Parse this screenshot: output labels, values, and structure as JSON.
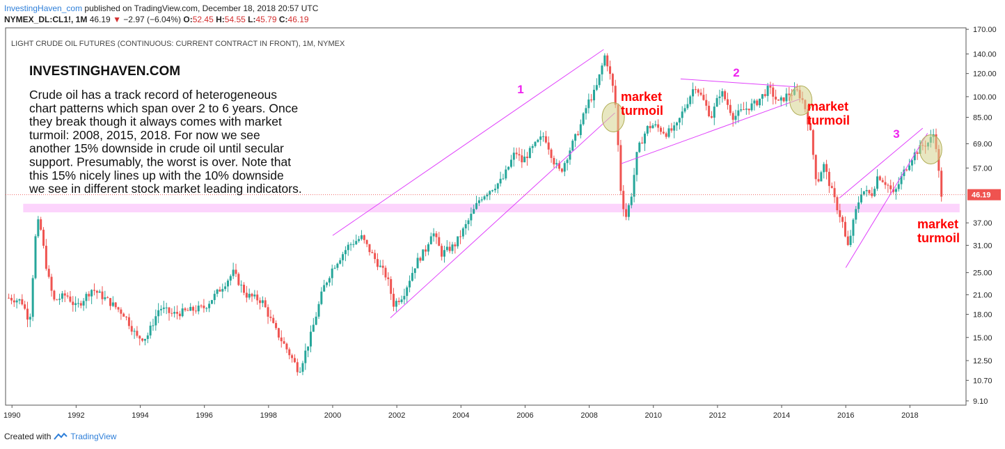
{
  "header": {
    "publisher": "InvestingHaven_com",
    "published_text": "published on TradingView.com, December 18, 2018 20:57 UTC",
    "symbol": "NYMEX_DL:CL1!, 1M",
    "last": "46.19",
    "change_arrow": "▼",
    "change": "−2.97 (−6.04%)",
    "o_label": "O:",
    "o_value": "52.45",
    "h_label": "H:",
    "h_value": "54.55",
    "l_label": "L:",
    "l_value": "45.79",
    "c_label": "C:",
    "c_value": "46.19"
  },
  "footer": {
    "created_with": "Created with",
    "tradingview": "TradingView"
  },
  "colors": {
    "up": "#26a69a",
    "down": "#ef5350",
    "trendline": "#e040fb",
    "zone": "#fbcdfb",
    "turmoil_text": "#ff0000",
    "number_label": "#ee22ee",
    "price_tag": "#ef5350",
    "circle_fill": "#d6d38e"
  },
  "chart_data": {
    "type": "candlestick",
    "title": "LIGHT CRUDE OIL FUTURES (CONTINUOUS: CURRENT CONTRACT IN FRONT), 1M, NYMEX",
    "y_scale": "log",
    "ylim": [
      8.8,
      172
    ],
    "xlim": [
      1989.8,
      2019.75
    ],
    "y_ticks": [
      "170.00",
      "140.00",
      "120.00",
      "100.00",
      "85.00",
      "69.00",
      "57.00",
      "46.19",
      "37.00",
      "31.00",
      "25.00",
      "21.00",
      "18.00",
      "15.00",
      "12.50",
      "10.70",
      "9.10"
    ],
    "y_tick_values": [
      170,
      140,
      120,
      100,
      85,
      69,
      57,
      46.19,
      37,
      31,
      25,
      21,
      18,
      15,
      12.5,
      10.7,
      9.1
    ],
    "x_ticks": [
      "1990",
      "1992",
      "1994",
      "1996",
      "1998",
      "2000",
      "2002",
      "2004",
      "2006",
      "2008",
      "2010",
      "2012",
      "2014",
      "2016",
      "2018"
    ],
    "x_tick_values": [
      1990,
      1992,
      1994,
      1996,
      1998,
      2000,
      2002,
      2004,
      2006,
      2008,
      2010,
      2012,
      2014,
      2016,
      2018
    ],
    "last_price": 46.19,
    "price_path": [
      [
        1989.9,
        20.5
      ],
      [
        1990.3,
        20
      ],
      [
        1990.55,
        17
      ],
      [
        1990.75,
        35
      ],
      [
        1990.85,
        38
      ],
      [
        1991.1,
        25
      ],
      [
        1991.3,
        20
      ],
      [
        1991.7,
        21
      ],
      [
        1992,
        19
      ],
      [
        1992.5,
        22
      ],
      [
        1993,
        20
      ],
      [
        1993.5,
        18
      ],
      [
        1993.9,
        15
      ],
      [
        1994.2,
        15
      ],
      [
        1994.6,
        19
      ],
      [
        1995,
        18
      ],
      [
        1995.5,
        18.5
      ],
      [
        1996,
        19
      ],
      [
        1996.5,
        22
      ],
      [
        1996.9,
        25
      ],
      [
        1997.3,
        21
      ],
      [
        1997.8,
        20
      ],
      [
        1998.2,
        16
      ],
      [
        1998.6,
        13.5
      ],
      [
        1998.95,
        11.5
      ],
      [
        1999.3,
        15
      ],
      [
        1999.7,
        22
      ],
      [
        2000,
        26
      ],
      [
        2000.5,
        31
      ],
      [
        2000.9,
        33
      ],
      [
        2001.3,
        28
      ],
      [
        2001.7,
        24
      ],
      [
        2001.9,
        19.5
      ],
      [
        2002.2,
        21
      ],
      [
        2002.6,
        27
      ],
      [
        2002.9,
        30
      ],
      [
        2003.1,
        35
      ],
      [
        2003.4,
        29
      ],
      [
        2003.8,
        31
      ],
      [
        2004.2,
        37
      ],
      [
        2004.6,
        45
      ],
      [
        2004.9,
        48
      ],
      [
        2005.3,
        52
      ],
      [
        2005.7,
        65
      ],
      [
        2005.9,
        60
      ],
      [
        2006.3,
        68
      ],
      [
        2006.6,
        74
      ],
      [
        2006.9,
        60
      ],
      [
        2007.1,
        55
      ],
      [
        2007.4,
        66
      ],
      [
        2007.7,
        78
      ],
      [
        2007.95,
        95
      ],
      [
        2008.2,
        105
      ],
      [
        2008.5,
        140
      ],
      [
        2008.6,
        125
      ],
      [
        2008.8,
        100
      ],
      [
        2008.9,
        68
      ],
      [
        2009.0,
        45
      ],
      [
        2009.15,
        39
      ],
      [
        2009.3,
        45
      ],
      [
        2009.5,
        65
      ],
      [
        2009.8,
        78
      ],
      [
        2010,
        80
      ],
      [
        2010.4,
        75
      ],
      [
        2010.7,
        78
      ],
      [
        2010.9,
        88
      ],
      [
        2011.3,
        110
      ],
      [
        2011.6,
        95
      ],
      [
        2011.8,
        85
      ],
      [
        2012.1,
        105
      ],
      [
        2012.3,
        95
      ],
      [
        2012.5,
        85
      ],
      [
        2012.8,
        90
      ],
      [
        2013.2,
        95
      ],
      [
        2013.6,
        107
      ],
      [
        2013.9,
        95
      ],
      [
        2014.2,
        102
      ],
      [
        2014.5,
        104
      ],
      [
        2014.7,
        95
      ],
      [
        2014.9,
        75
      ],
      [
        2015.1,
        50
      ],
      [
        2015.3,
        59
      ],
      [
        2015.6,
        46
      ],
      [
        2015.9,
        37
      ],
      [
        2016.05,
        30
      ],
      [
        2016.3,
        40
      ],
      [
        2016.5,
        48
      ],
      [
        2016.8,
        46
      ],
      [
        2017.0,
        54
      ],
      [
        2017.3,
        50
      ],
      [
        2017.5,
        46
      ],
      [
        2017.8,
        55
      ],
      [
        2018.1,
        63
      ],
      [
        2018.4,
        68
      ],
      [
        2018.6,
        70
      ],
      [
        2018.75,
        75
      ],
      [
        2018.85,
        65
      ],
      [
        2018.95,
        46.19
      ]
    ],
    "support_zone": [
      40.2,
      43.0
    ],
    "trendlines": [
      [
        [
          2000,
          33.5
        ],
        [
          2008.45,
          145
        ]
      ],
      [
        [
          2001.8,
          17.5
        ],
        [
          2008.8,
          88
        ]
      ],
      [
        [
          2010.85,
          115
        ],
        [
          2014.5,
          108
        ]
      ],
      [
        [
          2009.0,
          59
        ],
        [
          2014.55,
          98
        ]
      ],
      [
        [
          2016.0,
          26
        ],
        [
          2018.55,
          75
        ]
      ],
      [
        [
          2015.8,
          45
        ],
        [
          2018.4,
          78
        ]
      ]
    ],
    "circles": [
      [
        2008.75,
        85
      ],
      [
        2014.6,
        97
      ],
      [
        2018.65,
        66
      ]
    ],
    "annotations": {
      "brand": "INVESTINGHAVEN.COM",
      "body_lines": [
        "Crude oil has a track record of heterogeneous",
        "chart patterns which span over 2 to 6 years. Once",
        "they break though it always comes with market",
        "turmoil: 2008, 2015, 2018. For now we see",
        "another 15% downside in crude oil until secular",
        "support. Presumably, the worst is over. Note that",
        "this 15% nicely lines up with the 10% downside",
        "we see in different stock market leading indicators."
      ],
      "numbers": [
        "1",
        "2",
        "3"
      ],
      "turmoil_1": [
        "market",
        "turmoil"
      ],
      "turmoil_2": [
        "market",
        "turmoil"
      ],
      "turmoil_3": [
        "market",
        "turmoil"
      ]
    }
  }
}
